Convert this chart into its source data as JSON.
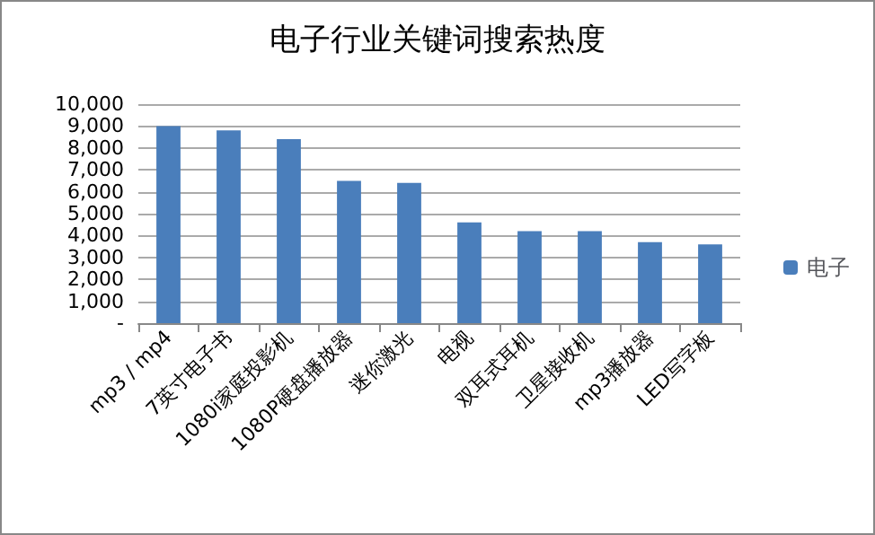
{
  "chart_data": {
    "type": "bar",
    "title": "电子行业关键词搜索热度",
    "categories": [
      "mp3 / mp4",
      "7英寸电子书",
      "1080i家庭投影机",
      "1080P硬盘播放器",
      "迷你激光",
      "电视",
      "双耳式耳机",
      "卫星接收机",
      "mp3播放器",
      "LED写字板"
    ],
    "series": [
      {
        "name": "电子",
        "color": "#4a7ebb",
        "values": [
          9000,
          8800,
          8400,
          6500,
          6400,
          4600,
          4200,
          4200,
          3700,
          3600
        ]
      }
    ],
    "ylim": [
      0,
      10000
    ],
    "yticks": [
      {
        "value": 0,
        "label": "-"
      },
      {
        "value": 1000,
        "label": "1,000"
      },
      {
        "value": 2000,
        "label": "2,000"
      },
      {
        "value": 3000,
        "label": "3,000"
      },
      {
        "value": 4000,
        "label": "4,000"
      },
      {
        "value": 5000,
        "label": "5,000"
      },
      {
        "value": 6000,
        "label": "6,000"
      },
      {
        "value": 7000,
        "label": "7,000"
      },
      {
        "value": 8000,
        "label": "8,000"
      },
      {
        "value": 9000,
        "label": "9,000"
      },
      {
        "value": 10000,
        "label": "10,000"
      }
    ],
    "grid": "y",
    "legend": "right"
  }
}
